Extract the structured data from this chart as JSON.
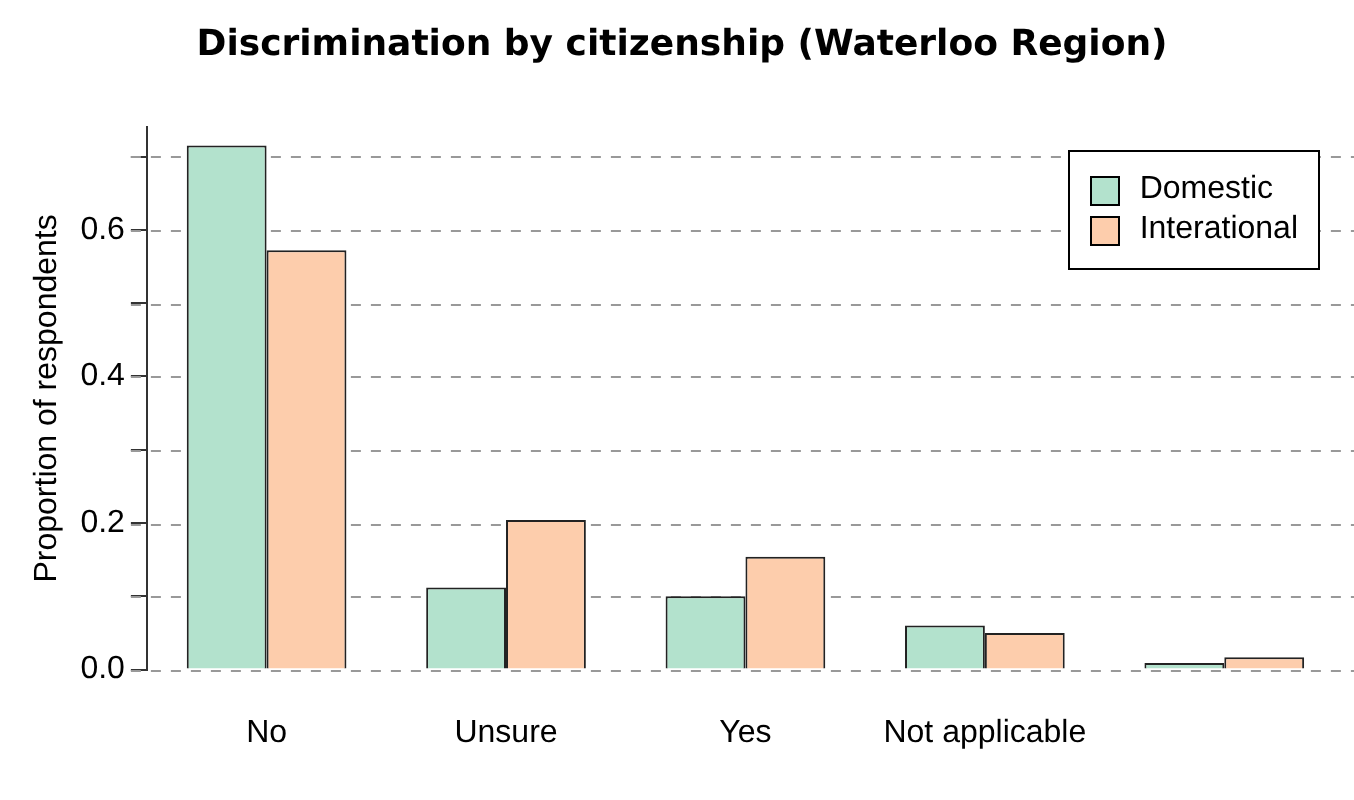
{
  "chart_data": {
    "type": "bar",
    "title": "Discrimination by citizenship (Waterloo Region)",
    "ylabel": "Proportion of respondents",
    "categories": [
      "No",
      "Unsure",
      "Yes",
      "Not applicable",
      null
    ],
    "series": [
      {
        "name": "Domestic",
        "color": "#b3e2cd",
        "values": [
          0.715,
          0.112,
          0.1,
          0.06,
          0.009
        ]
      },
      {
        "name": "Interational",
        "color": "#fdcdac",
        "values": [
          0.572,
          0.204,
          0.154,
          0.05,
          0.017
        ]
      }
    ],
    "ylim": [
      0,
      0.74
    ],
    "yticks": [
      {
        "value": 0,
        "label": "0.0"
      },
      {
        "value": 0.1,
        "label": null
      },
      {
        "value": 0.2,
        "label": "0.2"
      },
      {
        "value": 0.3,
        "label": null
      },
      {
        "value": 0.4,
        "label": "0.4"
      },
      {
        "value": 0.5,
        "label": null
      },
      {
        "value": 0.6,
        "label": "0.6"
      },
      {
        "value": 0.7,
        "label": null
      }
    ],
    "grid": "y",
    "legend": "top right"
  }
}
